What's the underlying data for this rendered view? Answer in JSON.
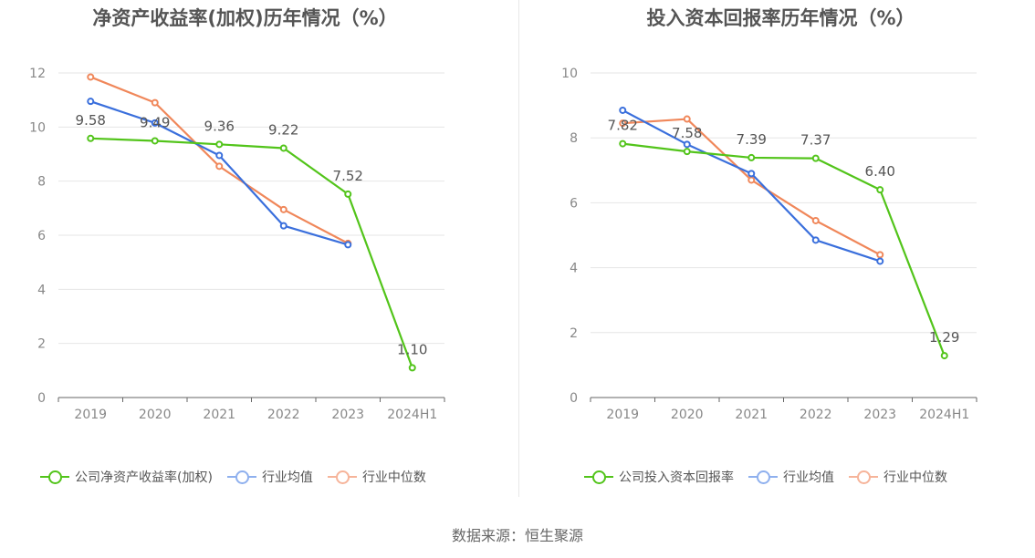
{
  "colors": {
    "company": "#52c41a",
    "avg": "#3a6fdc",
    "median": "#f0875a",
    "avg_legend": "#8fb0ee",
    "median_legend": "#f6b49a"
  },
  "source_text": "数据来源：恒生聚源",
  "chart_data": [
    {
      "type": "line",
      "title": "净资产收益率(加权)历年情况（%）",
      "categories": [
        "2019",
        "2020",
        "2021",
        "2022",
        "2023",
        "2024H1"
      ],
      "ylim": [
        0,
        12
      ],
      "yticks": [
        "0",
        "2",
        "4",
        "6",
        "8",
        "10",
        "12"
      ],
      "grid": true,
      "legend_position": "bottom",
      "series": [
        {
          "name": "公司净资产收益率(加权)",
          "values": [
            9.58,
            9.49,
            9.36,
            9.22,
            7.52,
            1.1
          ],
          "labels": [
            "9.58",
            "9.49",
            "9.36",
            "9.22",
            "7.52",
            "1.10"
          ]
        },
        {
          "name": "行业均值",
          "values": [
            10.95,
            10.15,
            8.95,
            6.35,
            5.65,
            null
          ]
        },
        {
          "name": "行业中位数",
          "values": [
            11.85,
            10.9,
            8.55,
            6.95,
            5.7,
            null
          ]
        }
      ]
    },
    {
      "type": "line",
      "title": "投入资本回报率历年情况（%）",
      "categories": [
        "2019",
        "2020",
        "2021",
        "2022",
        "2023",
        "2024H1"
      ],
      "ylim": [
        0,
        10
      ],
      "yticks": [
        "0",
        "2",
        "4",
        "6",
        "8",
        "10"
      ],
      "grid": true,
      "legend_position": "bottom",
      "series": [
        {
          "name": "公司投入资本回报率",
          "values": [
            7.82,
            7.58,
            7.39,
            7.37,
            6.4,
            1.29
          ],
          "labels": [
            "7.82",
            "7.58",
            "7.39",
            "7.37",
            "6.40",
            "1.29"
          ]
        },
        {
          "name": "行业均值",
          "values": [
            8.85,
            7.8,
            6.9,
            4.85,
            4.2,
            null
          ]
        },
        {
          "name": "行业中位数",
          "values": [
            8.45,
            8.58,
            6.7,
            5.45,
            4.4,
            null
          ]
        }
      ]
    }
  ]
}
